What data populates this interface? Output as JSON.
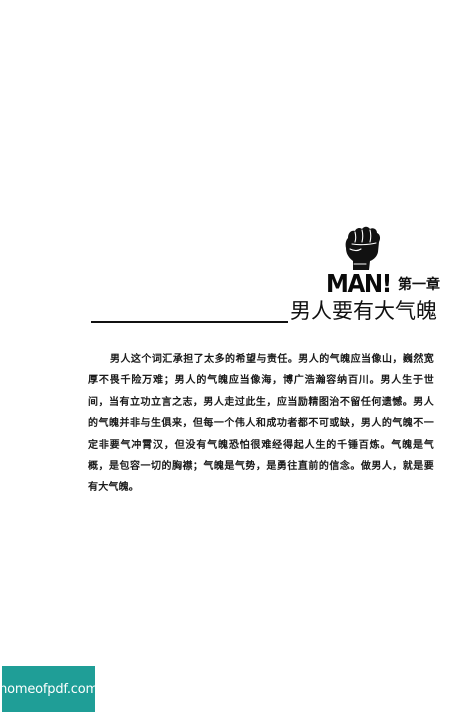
{
  "chapter": {
    "logo_text": "MAN!",
    "label": "第一章",
    "title": "男人要有大气魄"
  },
  "body": {
    "paragraph": "男人这个词汇承担了太多的希望与责任。男人的气魄应当像山，巍然宽厚不畏千险万难；男人的气魄应当像海，博广浩瀚容纳百川。男人生于世间，当有立功立言之志，男人走过此生，应当励精图治不留任何遗憾。男人的气魄并非与生俱来，但每一个伟人和成功者都不可或缺，男人的气魄不一定非要气冲霄汉，但没有气魄恐怕很难经得起人生的千锤百炼。气魄是气概，是包容一切的胸襟；气魄是气势，是勇往直前的信念。做男人，就是要有大气魄。"
  },
  "watermark": {
    "text": "homeofpdf.com",
    "color": "#1f9e97"
  },
  "icons": {
    "fist": "raised-fist-icon"
  }
}
